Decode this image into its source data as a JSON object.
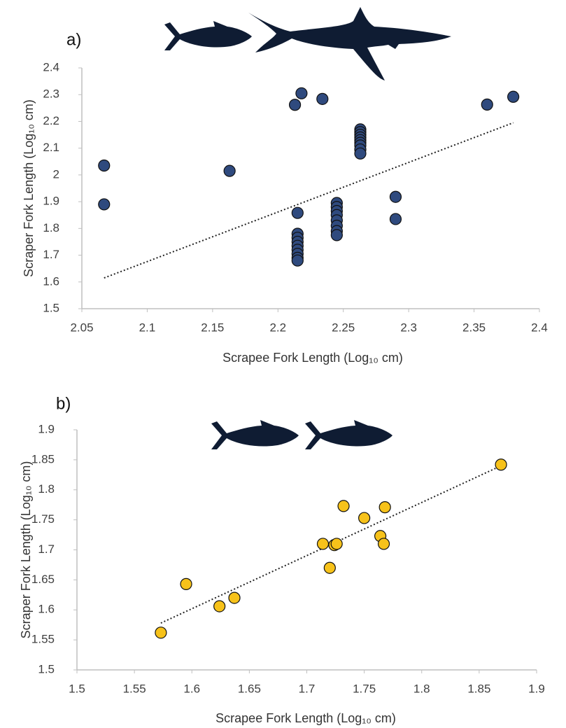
{
  "chart_data": [
    {
      "type": "scatter",
      "panel_label": "a)",
      "x_label": "Scrapee Fork Length (Log₁₀ cm)",
      "y_label": "Scraper Fork Length (Log₁₀ cm)",
      "xlim": [
        2.05,
        2.4
      ],
      "ylim": [
        1.5,
        2.4
      ],
      "xticks": [
        2.05,
        2.1,
        2.15,
        2.2,
        2.25,
        2.3,
        2.35,
        2.4
      ],
      "yticks": [
        1.5,
        1.6,
        1.7,
        1.8,
        1.9,
        2,
        2.1,
        2.2,
        2.3,
        2.4
      ],
      "color": "#2f4a7e",
      "x": [
        2.067,
        2.067,
        2.163,
        2.213,
        2.218,
        2.234,
        2.36,
        2.38,
        2.29,
        2.29,
        2.215,
        2.215,
        2.215,
        2.215,
        2.215,
        2.215,
        2.215,
        2.215,
        2.215,
        2.245,
        2.245,
        2.245,
        2.245,
        2.245,
        2.245,
        2.245,
        2.245,
        2.263,
        2.263,
        2.263,
        2.263,
        2.263,
        2.263,
        2.263,
        2.263,
        2.263
      ],
      "values": [
        2.035,
        1.89,
        2.015,
        2.262,
        2.305,
        2.284,
        2.263,
        2.292,
        1.918,
        1.835,
        1.858,
        1.78,
        1.765,
        1.75,
        1.735,
        1.72,
        1.705,
        1.69,
        1.68,
        1.895,
        1.88,
        1.865,
        1.85,
        1.83,
        1.81,
        1.79,
        1.775,
        2.17,
        2.16,
        2.15,
        2.14,
        2.13,
        2.12,
        2.11,
        2.095,
        2.08
      ],
      "trendline": {
        "x": [
          2.067,
          2.38
        ],
        "values": [
          1.615,
          2.195
        ]
      }
    },
    {
      "type": "scatter",
      "panel_label": "b)",
      "x_label": "Scrapee Fork Length (Log₁₀ cm)",
      "y_label": "Scraper Fork Length (Log₁₀ cm)",
      "xlim": [
        1.5,
        1.9
      ],
      "ylim": [
        1.5,
        1.9
      ],
      "xticks": [
        1.5,
        1.55,
        1.6,
        1.65,
        1.7,
        1.75,
        1.8,
        1.85,
        1.9
      ],
      "yticks": [
        1.5,
        1.55,
        1.6,
        1.65,
        1.7,
        1.75,
        1.8,
        1.85,
        1.9
      ],
      "color": "#f7c21a",
      "x": [
        1.573,
        1.595,
        1.624,
        1.637,
        1.714,
        1.72,
        1.724,
        1.726,
        1.732,
        1.75,
        1.764,
        1.767,
        1.768,
        1.869
      ],
      "values": [
        1.562,
        1.643,
        1.606,
        1.62,
        1.71,
        1.67,
        1.708,
        1.71,
        1.773,
        1.753,
        1.723,
        1.71,
        1.771,
        1.842
      ],
      "trendline": {
        "x": [
          1.573,
          1.869
        ],
        "values": [
          1.578,
          1.84
        ]
      }
    }
  ]
}
